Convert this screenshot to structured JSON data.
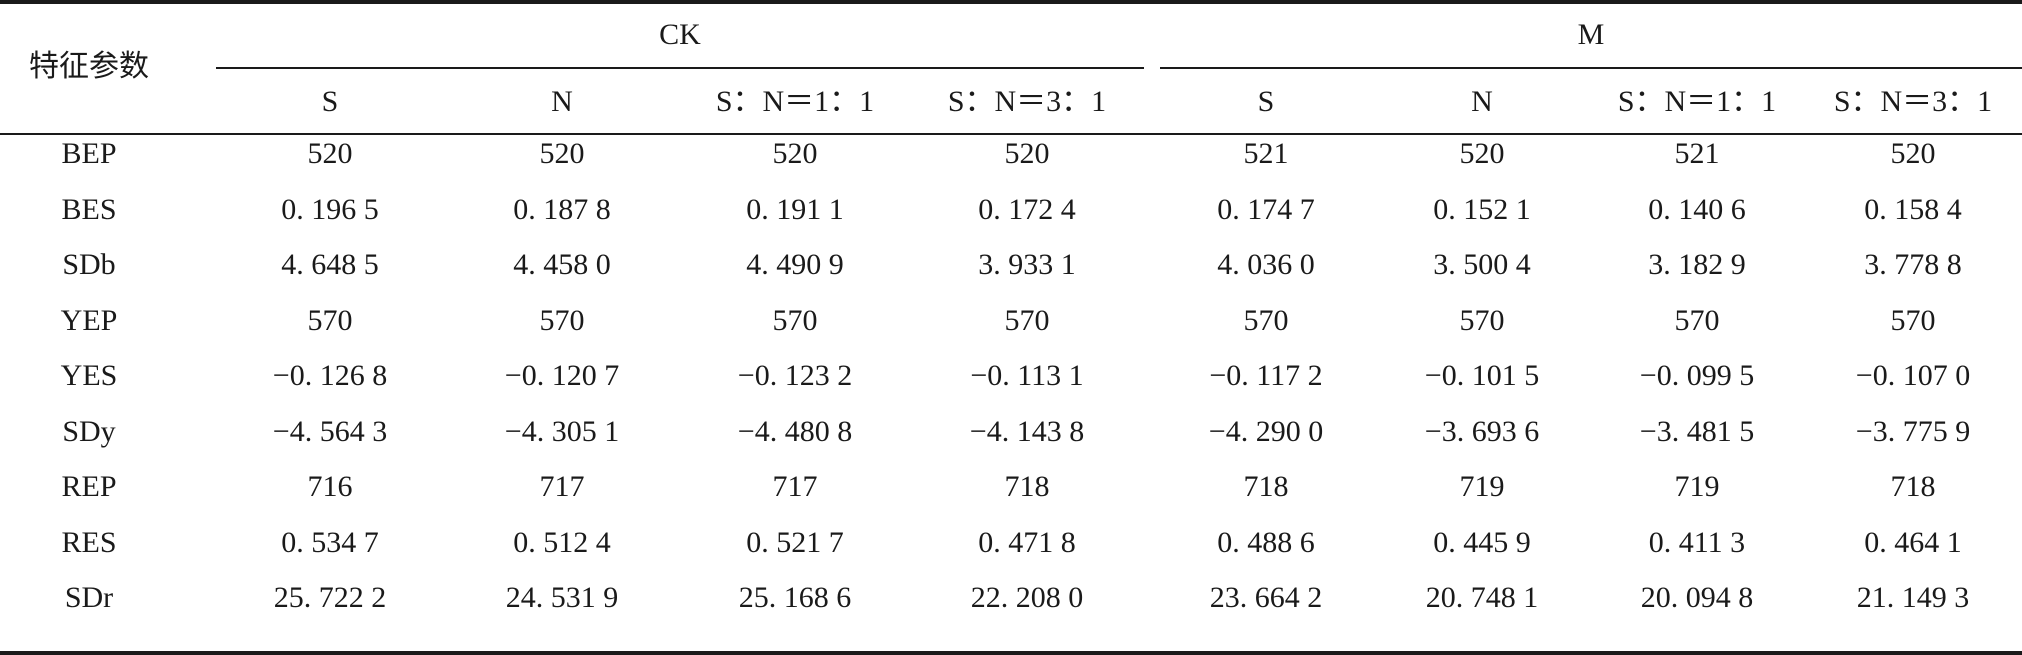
{
  "table": {
    "param_header": "特征参数",
    "groups": [
      "CK",
      "M"
    ],
    "columns": [
      "S",
      "N",
      "S：N＝1：1",
      "S：N＝3：1",
      "S",
      "N",
      "S：N＝1：1",
      "S：N＝3：1"
    ],
    "rows": [
      {
        "label": "BEP",
        "values": [
          "520",
          "520",
          "520",
          "520",
          "521",
          "520",
          "521",
          "520"
        ]
      },
      {
        "label": "BES",
        "values": [
          "0. 196 5",
          "0. 187 8",
          "0. 191 1",
          "0. 172 4",
          "0. 174 7",
          "0. 152 1",
          "0. 140 6",
          "0. 158 4"
        ]
      },
      {
        "label": "SDb",
        "values": [
          "4. 648 5",
          "4. 458 0",
          "4. 490 9",
          "3. 933 1",
          "4. 036 0",
          "3. 500 4",
          "3. 182 9",
          "3. 778 8"
        ]
      },
      {
        "label": "YEP",
        "values": [
          "570",
          "570",
          "570",
          "570",
          "570",
          "570",
          "570",
          "570"
        ]
      },
      {
        "label": "YES",
        "values": [
          "−0. 126 8",
          "−0. 120 7",
          "−0. 123 2",
          "−0. 113 1",
          "−0. 117 2",
          "−0. 101 5",
          "−0. 099 5",
          "−0. 107 0"
        ]
      },
      {
        "label": "SDy",
        "values": [
          "−4. 564 3",
          "−4. 305 1",
          "−4. 480 8",
          "−4. 143 8",
          "−4. 290 0",
          "−3. 693 6",
          "−3. 481 5",
          "−3. 775 9"
        ]
      },
      {
        "label": "REP",
        "values": [
          "716",
          "717",
          "717",
          "718",
          "718",
          "719",
          "719",
          "718"
        ]
      },
      {
        "label": "RES",
        "values": [
          "0. 534 7",
          "0. 512 4",
          "0. 521 7",
          "0. 471 8",
          "0. 488 6",
          "0. 445 9",
          "0. 411 3",
          "0. 464 1"
        ]
      },
      {
        "label": "SDr",
        "values": [
          "25. 722 2",
          "24. 531 9",
          "25. 168 6",
          "22. 208 0",
          "23. 664 2",
          "20. 748 1",
          "20. 094 8",
          "21. 149 3"
        ]
      }
    ]
  }
}
